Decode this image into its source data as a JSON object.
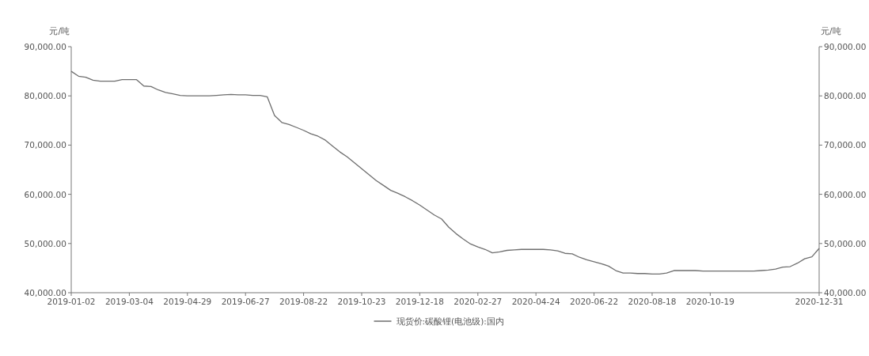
{
  "chart_data": {
    "type": "line",
    "ylabel": "元/吨",
    "y2label": "元/吨",
    "categories": [
      "2019-01-02",
      null,
      null,
      null,
      null,
      null,
      null,
      null,
      "2019-03-04",
      null,
      null,
      null,
      null,
      null,
      null,
      null,
      "2019-04-29",
      null,
      null,
      null,
      null,
      null,
      null,
      null,
      "2019-06-27",
      null,
      null,
      null,
      null,
      null,
      null,
      null,
      "2019-08-22",
      null,
      null,
      null,
      null,
      null,
      null,
      null,
      "2019-10-23",
      null,
      null,
      null,
      null,
      null,
      null,
      null,
      "2019-12-18",
      null,
      null,
      null,
      null,
      null,
      null,
      null,
      "2020-02-27",
      null,
      null,
      null,
      null,
      null,
      null,
      null,
      "2020-04-24",
      null,
      null,
      null,
      null,
      null,
      null,
      null,
      "2020-06-22",
      null,
      null,
      null,
      null,
      null,
      null,
      null,
      "2020-08-18",
      null,
      null,
      null,
      null,
      null,
      null,
      null,
      "2020-10-19",
      null,
      null,
      null,
      null,
      null,
      null,
      null,
      null,
      null,
      null,
      null,
      null,
      null,
      null,
      "2020-12-31"
    ],
    "series": [
      {
        "name": "现货价:碳酸锂(电池级):国内",
        "color": "#6e6e6e",
        "values": [
          85000,
          84000,
          83800,
          83200,
          83000,
          83000,
          83000,
          83300,
          83300,
          83300,
          82000,
          81900,
          81200,
          80700,
          80400,
          80100,
          80000,
          80000,
          80000,
          80000,
          80100,
          80200,
          80300,
          80200,
          80200,
          80100,
          80100,
          79800,
          76000,
          74600,
          74200,
          73600,
          73000,
          72300,
          71800,
          71000,
          69800,
          68600,
          67600,
          66400,
          65200,
          64000,
          62800,
          61800,
          60800,
          60200,
          59500,
          58700,
          57800,
          56800,
          55800,
          55000,
          53300,
          52000,
          50900,
          49900,
          49300,
          48800,
          48100,
          48300,
          48600,
          48700,
          48800,
          48800,
          48800,
          48800,
          48700,
          48500,
          48000,
          47900,
          47200,
          46700,
          46300,
          45900,
          45400,
          44500,
          44000,
          44000,
          43900,
          43900,
          43800,
          43800,
          44000,
          44500,
          44500,
          44500,
          44500,
          44400,
          44400,
          44400,
          44400,
          44400,
          44400,
          44400,
          44400,
          44500,
          44600,
          44800,
          45200,
          45300,
          46000,
          46900,
          47300,
          49000
        ]
      }
    ],
    "ylim": [
      40000,
      90000
    ],
    "yticks": [
      {
        "value": 40000,
        "label": "40,000.00"
      },
      {
        "value": 50000,
        "label": "50,000.00"
      },
      {
        "value": 60000,
        "label": "60,000.00"
      },
      {
        "value": 70000,
        "label": "70,000.00"
      },
      {
        "value": 80000,
        "label": "80,000.00"
      },
      {
        "value": 90000,
        "label": "90,000.00"
      }
    ],
    "y2lim": [
      40000,
      90000
    ],
    "y2ticks": [
      {
        "value": 40000,
        "label": "40,000.00"
      },
      {
        "value": 50000,
        "label": "50,000.00"
      },
      {
        "value": 60000,
        "label": "60,000.00"
      },
      {
        "value": 70000,
        "label": "70,000.00"
      },
      {
        "value": 80000,
        "label": "80,000.00"
      },
      {
        "value": 90000,
        "label": "90,000.00"
      }
    ],
    "legend": "bottom",
    "marker": "none",
    "line_style": "solid"
  }
}
